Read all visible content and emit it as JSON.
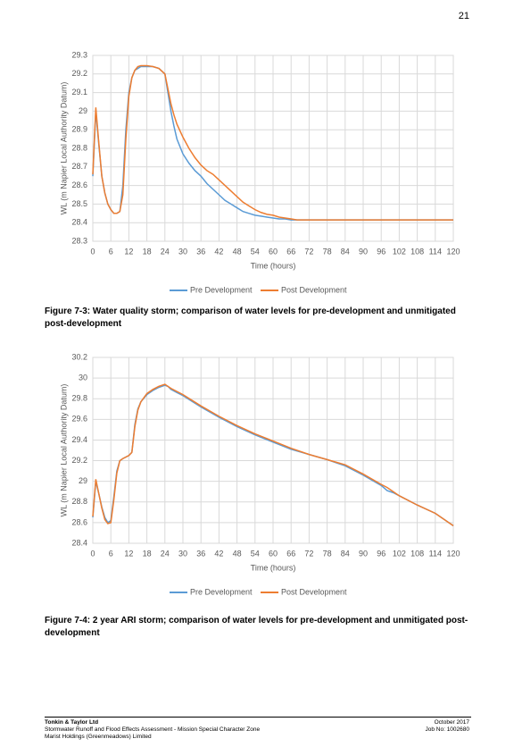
{
  "page_number": "21",
  "captions": [
    "Figure 7-3: Water quality storm; comparison of water levels for pre-development and unmitigated post-development",
    "Figure 7-4: 2 year ARI storm; comparison of water levels for pre-development and unmitigated post-development"
  ],
  "footer": {
    "company": "Tonkin & Taylor Ltd",
    "report": "Stormwater Runoff and Flood Effects Assessment - Mission Special Character Zone",
    "client": "Marist Holdings (Greenmeadows) Limited",
    "date": "October 2017",
    "job": "Job No: 1002680"
  },
  "chart_data": [
    {
      "type": "line",
      "y_label": "WL (m Napier Local Authority Datum)",
      "x_label": "Time (hours)",
      "grid": true,
      "legend": "bottom",
      "xlim": [
        0,
        120
      ],
      "xticks": [
        0,
        6,
        12,
        18,
        24,
        30,
        36,
        42,
        48,
        54,
        60,
        66,
        72,
        78,
        84,
        90,
        96,
        102,
        108,
        114,
        120
      ],
      "ylim": [
        28.3,
        29.3
      ],
      "yticks": [
        28.3,
        28.4,
        28.5,
        28.6,
        28.7,
        28.8,
        28.9,
        29,
        29.1,
        29.2,
        29.3
      ],
      "x": [
        0,
        1,
        2,
        3,
        4,
        5,
        6,
        7,
        8,
        9,
        10,
        11,
        12,
        13,
        14,
        15,
        16,
        18,
        20,
        22,
        24,
        25,
        26,
        27,
        28,
        30,
        32,
        34,
        36,
        38,
        40,
        42,
        44,
        46,
        48,
        50,
        52,
        54,
        56,
        58,
        60,
        62,
        64,
        66,
        68,
        70,
        72,
        80,
        90,
        100,
        110,
        120
      ],
      "series": [
        {
          "name": "Pre Development",
          "color": "#5b9bd5",
          "values": [
            28.65,
            29.0,
            28.82,
            28.65,
            28.56,
            28.5,
            28.47,
            28.45,
            28.45,
            28.46,
            28.6,
            28.9,
            29.1,
            29.18,
            29.22,
            29.23,
            29.24,
            29.24,
            29.24,
            29.23,
            29.2,
            29.1,
            29.0,
            28.92,
            28.85,
            28.77,
            28.72,
            28.68,
            28.65,
            28.61,
            28.58,
            28.55,
            28.52,
            28.5,
            28.48,
            28.46,
            28.45,
            28.44,
            28.435,
            28.43,
            28.425,
            28.42,
            28.42,
            28.415,
            28.415,
            28.415,
            28.415,
            28.415,
            28.415,
            28.415,
            28.415,
            28.415
          ]
        },
        {
          "name": "Post Development",
          "color": "#ed7d31",
          "values": [
            28.66,
            29.02,
            28.83,
            28.65,
            28.56,
            28.5,
            28.47,
            28.45,
            28.45,
            28.46,
            28.55,
            28.85,
            29.08,
            29.18,
            29.22,
            29.24,
            29.245,
            29.245,
            29.24,
            29.23,
            29.2,
            29.12,
            29.04,
            28.98,
            28.93,
            28.86,
            28.8,
            28.75,
            28.71,
            28.68,
            28.66,
            28.63,
            28.6,
            28.57,
            28.54,
            28.51,
            28.49,
            28.47,
            28.455,
            28.445,
            28.44,
            28.43,
            28.425,
            28.42,
            28.415,
            28.415,
            28.415,
            28.415,
            28.415,
            28.415,
            28.415,
            28.415
          ]
        }
      ]
    },
    {
      "type": "line",
      "y_label": "WL (m Napier Local Authority Datum)",
      "x_label": "Time (hours)",
      "grid": true,
      "legend": "bottom",
      "xlim": [
        0,
        120
      ],
      "xticks": [
        0,
        6,
        12,
        18,
        24,
        30,
        36,
        42,
        48,
        54,
        60,
        66,
        72,
        78,
        84,
        90,
        96,
        102,
        108,
        114,
        120
      ],
      "ylim": [
        28.4,
        30.2
      ],
      "yticks": [
        28.4,
        28.6,
        28.8,
        29,
        29.2,
        29.4,
        29.6,
        29.8,
        30,
        30.2
      ],
      "x": [
        0,
        1,
        2,
        3,
        4,
        5,
        6,
        7,
        8,
        9,
        10,
        12,
        13,
        14,
        15,
        16,
        18,
        20,
        22,
        24,
        25,
        26,
        28,
        30,
        36,
        42,
        48,
        54,
        60,
        66,
        72,
        78,
        84,
        90,
        96,
        98,
        100,
        102,
        108,
        114,
        120
      ],
      "series": [
        {
          "name": "Pre Development",
          "color": "#5b9bd5",
          "values": [
            28.65,
            29.0,
            28.88,
            28.75,
            28.65,
            28.6,
            28.62,
            28.85,
            29.1,
            29.2,
            29.22,
            29.25,
            29.28,
            29.55,
            29.7,
            29.77,
            29.84,
            29.88,
            29.91,
            29.93,
            29.92,
            29.89,
            29.86,
            29.83,
            29.72,
            29.62,
            29.53,
            29.45,
            29.38,
            29.31,
            29.26,
            29.21,
            29.15,
            29.06,
            28.96,
            28.91,
            28.89,
            28.86,
            28.77,
            28.69,
            28.57
          ]
        },
        {
          "name": "Post Development",
          "color": "#ed7d31",
          "values": [
            28.66,
            29.02,
            28.88,
            28.74,
            28.63,
            28.59,
            28.6,
            28.82,
            29.08,
            29.2,
            29.22,
            29.25,
            29.28,
            29.53,
            29.69,
            29.77,
            29.85,
            29.89,
            29.92,
            29.94,
            29.92,
            29.9,
            29.87,
            29.84,
            29.73,
            29.63,
            29.54,
            29.46,
            29.39,
            29.32,
            29.26,
            29.21,
            29.16,
            29.07,
            28.97,
            28.94,
            28.9,
            28.86,
            28.77,
            28.69,
            28.57
          ]
        }
      ]
    }
  ]
}
